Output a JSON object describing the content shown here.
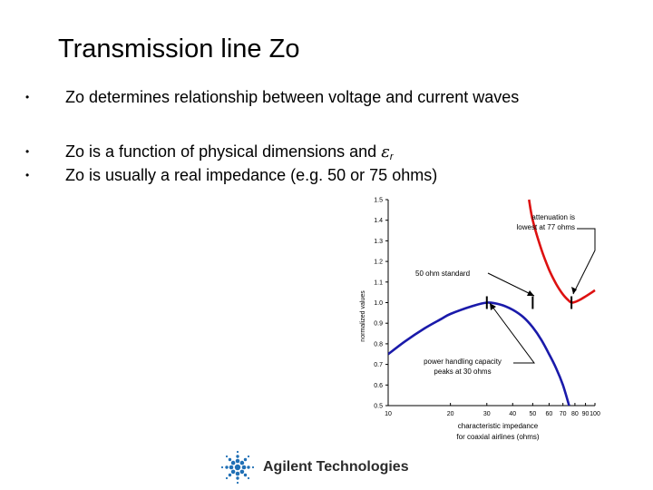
{
  "slide": {
    "title": "Transmission line Zo",
    "bullets": [
      {
        "text": "Zo determines relationship between voltage and current waves"
      },
      {
        "text": "Zo is a function of physical dimensions and",
        "symbol": "ε",
        "subscript": "r"
      },
      {
        "text": "Zo is usually a real impedance (e.g. 50 or 75 ohms)"
      }
    ],
    "bullet_marker": "•"
  },
  "chart_data": {
    "type": "line",
    "title": "",
    "xlabel_line1": "characteristic impedance",
    "xlabel_line2": "for coaxial airlines (ohms)",
    "ylabel": "normalized values",
    "xscale": "log",
    "xlim": [
      10,
      100
    ],
    "ylim": [
      0.5,
      1.5
    ],
    "x_ticks": [
      10,
      20,
      30,
      40,
      50,
      60,
      70,
      80,
      90,
      100
    ],
    "x_tick_labels": [
      "10",
      "20",
      "30",
      "40",
      "50",
      "60",
      "70",
      "80",
      "90",
      "100"
    ],
    "y_ticks": [
      0.5,
      0.6,
      0.7,
      0.8,
      0.9,
      1.0,
      1.1,
      1.2,
      1.3,
      1.4,
      1.5
    ],
    "y_tick_labels": [
      "0.5",
      "0.6",
      "0.7",
      "0.8",
      "0.9",
      "1.0",
      "1.1",
      "1.2",
      "1.3",
      "1.4",
      "1.5"
    ],
    "series": [
      {
        "color": "#dd1111",
        "x": [
          48,
          50,
          55,
          60,
          65,
          70,
          75,
          77,
          80,
          85,
          90,
          95,
          100
        ],
        "y": [
          1.5,
          1.4,
          1.26,
          1.16,
          1.09,
          1.04,
          1.008,
          1.0,
          1.003,
          1.015,
          1.03,
          1.045,
          1.06
        ]
      },
      {
        "color": "#1a1aaa",
        "x": [
          10,
          12,
          15,
          18,
          20,
          25,
          30,
          35,
          40,
          45,
          50,
          55,
          60,
          65,
          70,
          75
        ],
        "y": [
          0.75,
          0.81,
          0.875,
          0.92,
          0.945,
          0.98,
          1.0,
          0.99,
          0.965,
          0.93,
          0.88,
          0.82,
          0.75,
          0.68,
          0.6,
          0.5
        ]
      }
    ],
    "annotations": [
      {
        "lines": [
          "attenuation is",
          "lowest at 77 ohms"
        ],
        "x": 77
      },
      {
        "lines": [
          "50 ohm standard"
        ],
        "x": 50
      },
      {
        "lines": [
          "power handling capacity",
          "peaks at 30 ohms"
        ],
        "x": 30
      }
    ]
  },
  "logo": {
    "text": "Agilent Technologies"
  },
  "colors": {
    "red_series": "#dd1111",
    "blue_series": "#1a1aaa",
    "logo_blue": "#1f6fb5"
  }
}
